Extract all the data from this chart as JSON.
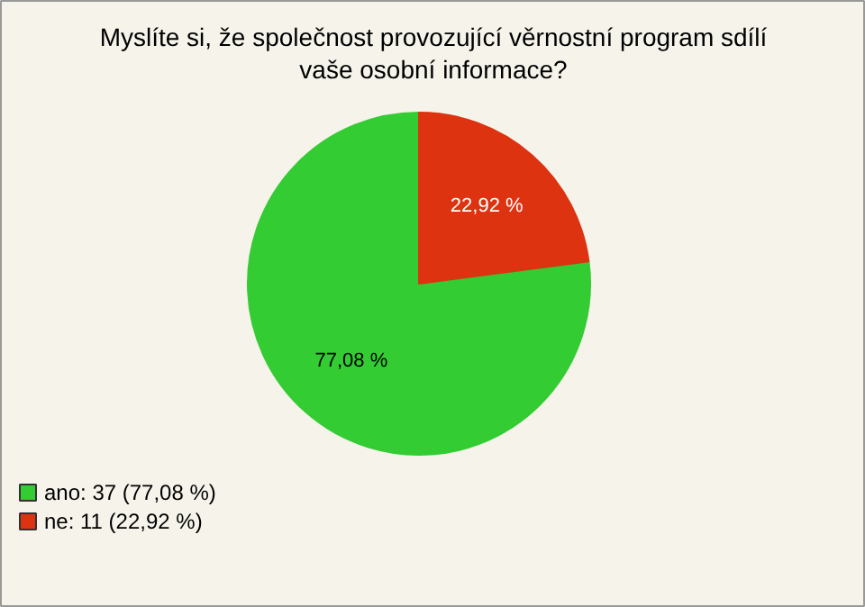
{
  "chart_data": {
    "type": "pie",
    "title": "Myslíte si, že společnost provozující věrnostní program sdílí vaše osobní informace?",
    "categories": [
      "ano: 37 (77,08 %)",
      "ne: 11 (22,92 %)"
    ],
    "values": [
      77.08,
      22.92
    ],
    "value_labels": [
      "77,08 %",
      "22,92 %"
    ],
    "colors": [
      "#33cc33",
      "#dd3311"
    ],
    "legend": "bottom left"
  }
}
